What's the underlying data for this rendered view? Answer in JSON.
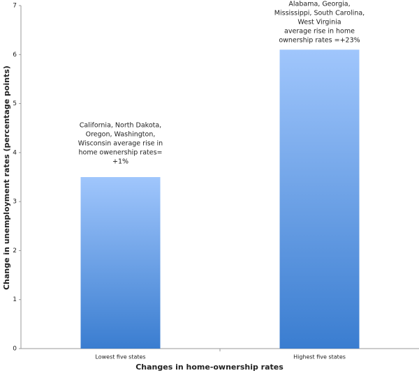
{
  "chart_data": {
    "type": "bar",
    "x_label": "Changes in home-ownership rates",
    "y_label": "Change in unemployment rates (percentage points)",
    "categories": [
      "Lowest five states",
      "Highest five states"
    ],
    "values": [
      3.5,
      6.1
    ],
    "ylim": [
      0,
      7
    ],
    "yticks": [
      0,
      1,
      2,
      3,
      4,
      5,
      6,
      7
    ],
    "annotations": [
      [
        "California, North Dakota,",
        "Oregon, Washington,",
        "Wisconsin average rise in",
        "home owenership rates=",
        "+1%"
      ],
      [
        "Alabama, Georgia,",
        "Mississippi, South Carolina,",
        "West Virginia",
        "average rise in home",
        "ownership rates =+23%"
      ]
    ]
  }
}
